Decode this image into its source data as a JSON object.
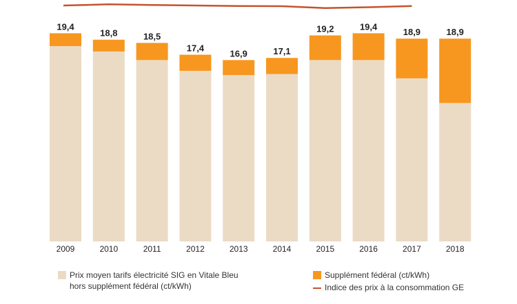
{
  "chart_data": {
    "type": "bar",
    "stacked": true,
    "categories": [
      "2009",
      "2010",
      "2011",
      "2012",
      "2013",
      "2014",
      "2015",
      "2016",
      "2017",
      "2018"
    ],
    "series": [
      {
        "name": "Prix moyen tarifs électricité SIG en Vitale Bleu hors supplément fédéral (ct/kWh)",
        "values": [
          18.2,
          17.7,
          16.9,
          15.9,
          15.5,
          15.6,
          16.9,
          16.9,
          15.2,
          12.9
        ]
      },
      {
        "name": "Supplément fédéral (ct/kWh)",
        "values": [
          1.2,
          1.1,
          1.6,
          1.5,
          1.4,
          1.5,
          2.3,
          2.5,
          3.7,
          6.0
        ]
      }
    ],
    "totals": [
      "19,4",
      "18,8",
      "18,5",
      "17,4",
      "16,9",
      "17,1",
      "19,2",
      "19,4",
      "18,9",
      "18,9"
    ],
    "line": {
      "name": "Indice des prix à la consommation GE",
      "x_range": [
        "2009",
        "2017"
      ],
      "values": [
        100.0,
        100.5,
        100.2,
        100.0,
        99.8,
        99.7,
        98.9,
        99.3,
        99.8
      ]
    },
    "ylim": [
      0,
      22
    ],
    "title": "",
    "xlabel": "",
    "ylabel": "",
    "colors": {
      "base": "#ebdbc5",
      "supplement": "#f7971f",
      "line": "#c4532b"
    }
  },
  "legend": {
    "base_label": "Prix moyen tarifs électricité SIG en Vitale Bleu hors supplément fédéral (ct/kWh)",
    "supplement_label": "Supplément fédéral (ct/kWh)",
    "cpi_label": "Indice des prix à la consommation GE"
  }
}
